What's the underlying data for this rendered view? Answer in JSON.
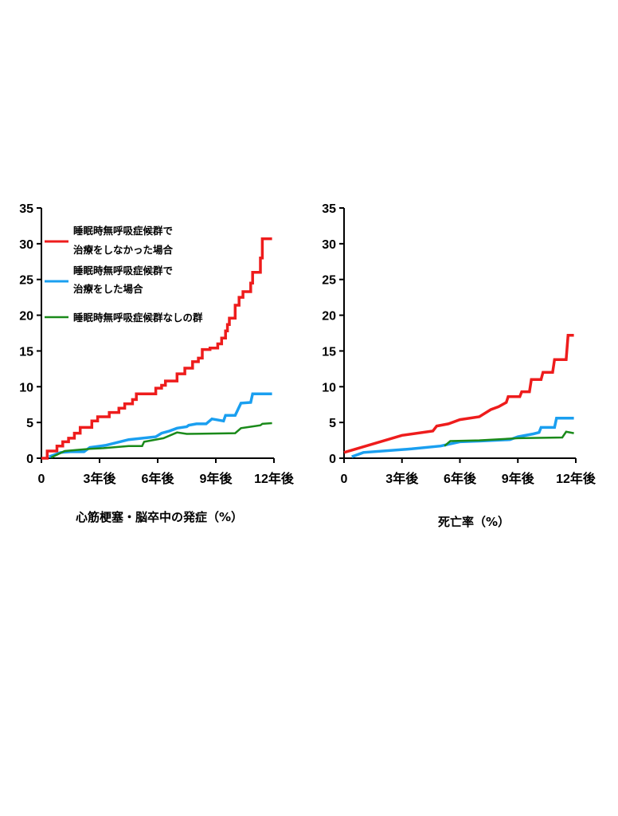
{
  "chart_data": [
    {
      "type": "line",
      "caption": "心筋梗塞・脳卒中の発症（%）",
      "ylim": [
        0,
        35
      ],
      "yticks": [
        "0",
        "5",
        "10",
        "15",
        "20",
        "25",
        "30",
        "35"
      ],
      "xlim": [
        0,
        12
      ],
      "xticks": [
        {
          "x": 0,
          "label": "0"
        },
        {
          "x": 3,
          "label": "3年後"
        },
        {
          "x": 6,
          "label": "6年後"
        },
        {
          "x": 9,
          "label": "9年後"
        },
        {
          "x": 12,
          "label": "12年後"
        }
      ],
      "grid": false,
      "legend_position": "top-left",
      "legend": [
        {
          "lines": [
            "睡眠時無呼吸症候群で",
            "治療をしなかった場合"
          ],
          "color": "#ee1c1c"
        },
        {
          "lines": [
            "睡眠時無呼吸症候群で",
            "治療をした場合"
          ],
          "color": "#1a9ff0"
        },
        {
          "lines": [
            "睡眠時無呼吸症候群なしの群"
          ],
          "color": "#1a8a1a"
        }
      ],
      "series": [
        {
          "color": "#ee1c1c",
          "width": 3.5,
          "step": true,
          "points": [
            [
              0,
              0
            ],
            [
              0.3,
              1
            ],
            [
              0.8,
              1.7
            ],
            [
              1.1,
              2.3
            ],
            [
              1.4,
              2.8
            ],
            [
              1.7,
              3.5
            ],
            [
              2.0,
              4.3
            ],
            [
              2.6,
              5.2
            ],
            [
              2.9,
              5.8
            ],
            [
              3.5,
              6.4
            ],
            [
              4.0,
              7
            ],
            [
              4.3,
              7.6
            ],
            [
              4.7,
              8.2
            ],
            [
              4.9,
              9
            ],
            [
              5.6,
              9
            ],
            [
              5.9,
              9.8
            ],
            [
              6.2,
              10.2
            ],
            [
              6.4,
              10.8
            ],
            [
              7.0,
              11.8
            ],
            [
              7.4,
              12.6
            ],
            [
              7.8,
              13.5
            ],
            [
              8.1,
              14
            ],
            [
              8.3,
              15.2
            ],
            [
              8.7,
              15.4
            ],
            [
              9.1,
              16
            ],
            [
              9.3,
              16.8
            ],
            [
              9.5,
              17.8
            ],
            [
              9.6,
              18.7
            ],
            [
              9.7,
              19.6
            ],
            [
              10.0,
              21.4
            ],
            [
              10.2,
              22.5
            ],
            [
              10.4,
              23.3
            ],
            [
              10.8,
              24.5
            ],
            [
              10.9,
              26
            ],
            [
              11.3,
              28
            ],
            [
              11.4,
              30.7
            ],
            [
              11.9,
              30.7
            ]
          ]
        },
        {
          "color": "#1a9ff0",
          "width": 3.5,
          "step": false,
          "points": [
            [
              0.4,
              0.2
            ],
            [
              1.0,
              0.8
            ],
            [
              1.5,
              0.9
            ],
            [
              2.2,
              0.9
            ],
            [
              2.5,
              1.5
            ],
            [
              3.3,
              1.8
            ],
            [
              4.5,
              2.6
            ],
            [
              5.9,
              3
            ],
            [
              6.2,
              3.5
            ],
            [
              6.6,
              3.8
            ],
            [
              7.0,
              4.2
            ],
            [
              7.5,
              4.4
            ],
            [
              7.6,
              4.6
            ],
            [
              8.0,
              4.8
            ],
            [
              8.5,
              4.8
            ],
            [
              8.8,
              5.5
            ],
            [
              9.4,
              5.2
            ],
            [
              9.5,
              6.0
            ],
            [
              10.0,
              6.0
            ],
            [
              10.3,
              7.7
            ],
            [
              10.8,
              7.8
            ],
            [
              10.9,
              9.0
            ],
            [
              11.9,
              9.0
            ]
          ]
        },
        {
          "color": "#1a8a1a",
          "width": 2.5,
          "step": false,
          "points": [
            [
              0.5,
              0.1
            ],
            [
              1.2,
              1.0
            ],
            [
              2.5,
              1.3
            ],
            [
              3.2,
              1.4
            ],
            [
              4.5,
              1.7
            ],
            [
              5.2,
              1.7
            ],
            [
              5.3,
              2.3
            ],
            [
              6.3,
              2.8
            ],
            [
              7.0,
              3.6
            ],
            [
              7.5,
              3.4
            ],
            [
              10.0,
              3.5
            ],
            [
              10.3,
              4.2
            ],
            [
              10.8,
              4.4
            ],
            [
              11.3,
              4.6
            ],
            [
              11.4,
              4.8
            ],
            [
              11.9,
              4.9
            ]
          ]
        }
      ]
    },
    {
      "type": "line",
      "caption": "死亡率（%）",
      "ylim": [
        0,
        35
      ],
      "yticks": [
        "0",
        "5",
        "10",
        "15",
        "20",
        "25",
        "30",
        "35"
      ],
      "xlim": [
        0,
        12
      ],
      "xticks": [
        {
          "x": 0,
          "label": "0"
        },
        {
          "x": 3,
          "label": "3年後"
        },
        {
          "x": 6,
          "label": "6年後"
        },
        {
          "x": 9,
          "label": "9年後"
        },
        {
          "x": 12,
          "label": "12年後"
        }
      ],
      "grid": false,
      "series": [
        {
          "color": "#ee1c1c",
          "width": 3.5,
          "step": false,
          "points": [
            [
              0,
              0.8
            ],
            [
              3.0,
              3.2
            ],
            [
              4.6,
              3.8
            ],
            [
              4.8,
              4.5
            ],
            [
              5.4,
              4.8
            ],
            [
              6.0,
              5.4
            ],
            [
              7.0,
              5.8
            ],
            [
              7.6,
              6.8
            ],
            [
              8.0,
              7.2
            ],
            [
              8.4,
              7.8
            ],
            [
              8.5,
              8.6
            ],
            [
              9.1,
              8.6
            ],
            [
              9.2,
              9.3
            ],
            [
              9.6,
              9.3
            ],
            [
              9.7,
              11.0
            ],
            [
              10.2,
              11.0
            ],
            [
              10.3,
              12.0
            ],
            [
              10.8,
              12.0
            ],
            [
              10.9,
              13.8
            ],
            [
              11.5,
              13.8
            ],
            [
              11.6,
              17.2
            ],
            [
              11.9,
              17.2
            ]
          ]
        },
        {
          "color": "#1a9ff0",
          "width": 3.5,
          "step": false,
          "points": [
            [
              0.4,
              0.2
            ],
            [
              1.0,
              0.8
            ],
            [
              3.5,
              1.3
            ],
            [
              5.0,
              1.7
            ],
            [
              6.0,
              2.3
            ],
            [
              7.0,
              2.4
            ],
            [
              8.6,
              2.6
            ],
            [
              9.0,
              3.0
            ],
            [
              9.8,
              3.4
            ],
            [
              10.1,
              3.6
            ],
            [
              10.2,
              4.3
            ],
            [
              10.9,
              4.3
            ],
            [
              11.0,
              5.6
            ],
            [
              11.9,
              5.6
            ]
          ]
        },
        {
          "color": "#1a8a1a",
          "width": 2.5,
          "step": false,
          "points": [
            [
              5.2,
              1.7
            ],
            [
              5.5,
              2.4
            ],
            [
              7.0,
              2.5
            ],
            [
              9.0,
              2.8
            ],
            [
              11.3,
              2.9
            ],
            [
              11.5,
              3.7
            ],
            [
              11.9,
              3.5
            ]
          ]
        }
      ]
    }
  ]
}
